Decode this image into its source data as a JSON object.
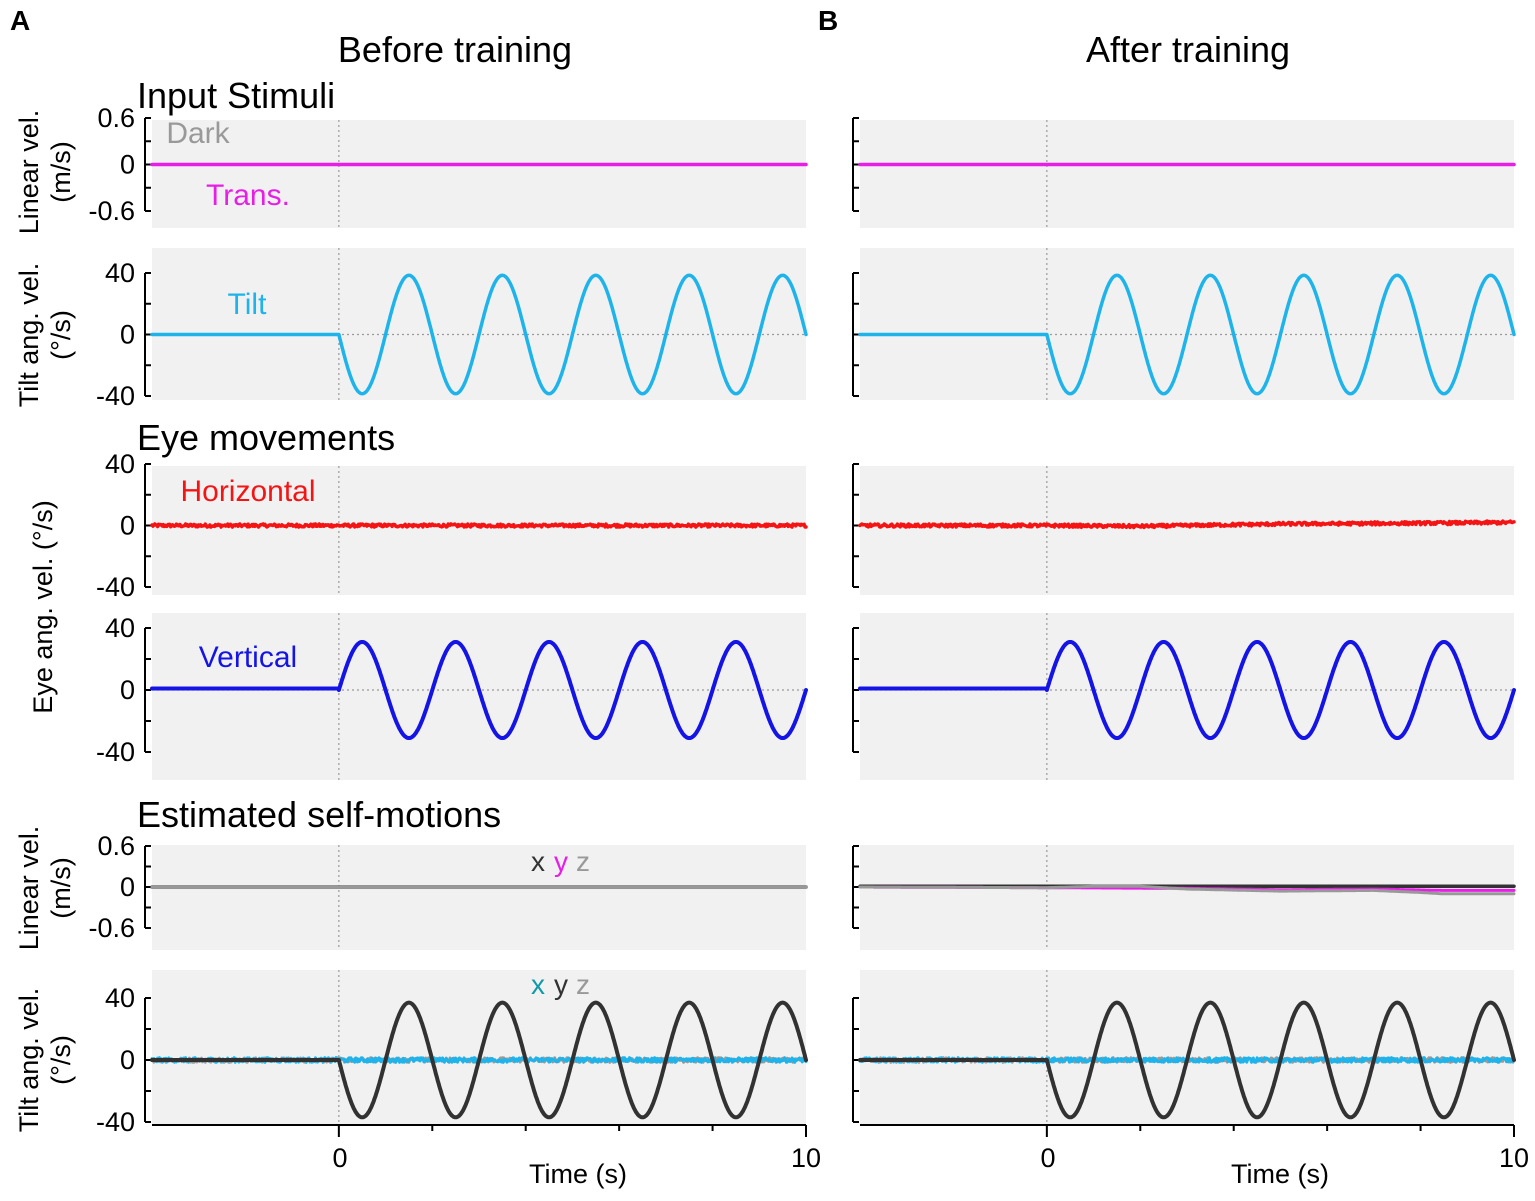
{
  "figure": {
    "panel_letters": [
      "A",
      "B"
    ],
    "column_titles": [
      "Before training",
      "After training"
    ],
    "section_titles": {
      "input": "Input Stimuli",
      "eye": "Eye movements",
      "estimated": "Estimated self-motions"
    },
    "x_axis": {
      "label": "Time (s)",
      "tick_labels": [
        "0",
        "10"
      ],
      "xlim": [
        -4,
        10
      ]
    },
    "y_axis_labels": {
      "linear_vel_line1": "Linear vel.",
      "linear_vel_line2": "(m/s)",
      "tilt_vel_line1": "Tilt ang. vel.",
      "tilt_vel_line2": "(°/s)",
      "eye_vel": "Eye ang. vel. (°/s)"
    },
    "in_plot_labels": {
      "dark": "Dark",
      "trans": "Trans.",
      "tilt": "Tilt",
      "horizontal": "Horizontal",
      "vertical": "Vertical",
      "xyz_linear": [
        "x",
        "y",
        "z"
      ],
      "xyz_tilt": [
        "x",
        "y",
        "z"
      ]
    },
    "colors": {
      "magenta": "#e61ee6",
      "light_blue": "#1eb4eb",
      "red": "#f51414",
      "blue": "#1414e6",
      "dark": "#323232",
      "gray": "#999999",
      "teal": "#0f9aa8",
      "panel_bg": "#f1f1f1"
    }
  },
  "chart_data": [
    {
      "type": "line",
      "panel": "A",
      "row": "Input stimuli - linear velocity",
      "ylabel": "Linear vel. (m/s)",
      "ylim": [
        -0.6,
        0.6
      ],
      "yticks": [
        -0.6,
        0,
        0.6
      ],
      "xlim": [
        -4,
        10
      ],
      "stimulus_onset": 0,
      "series": [
        {
          "name": "Trans.",
          "x": [
            -4,
            10
          ],
          "y": [
            0,
            0
          ]
        }
      ],
      "annotations": [
        "Dark",
        "Trans."
      ]
    },
    {
      "type": "line",
      "panel": "A",
      "row": "Input stimuli - tilt angular velocity",
      "ylabel": "Tilt ang. vel. (°/s)",
      "ylim": [
        -40,
        40
      ],
      "yticks": [
        -40,
        0,
        40
      ],
      "xlim": [
        -4,
        10
      ],
      "stimulus_onset": 0,
      "series": [
        {
          "name": "Tilt",
          "baseline_before_onset": 0,
          "amplitude": 38.5,
          "period": 2.0,
          "phase": "starts negative at onset",
          "x_range": [
            0,
            10
          ]
        }
      ]
    },
    {
      "type": "line",
      "panel": "A",
      "row": "Eye movements - horizontal",
      "ylabel": "Eye ang. vel. (°/s)",
      "ylim": [
        -40,
        40
      ],
      "yticks": [
        -40,
        0,
        40
      ],
      "xlim": [
        -4,
        10
      ],
      "stimulus_onset": 0,
      "series": [
        {
          "name": "Horizontal",
          "x": [
            -4,
            10
          ],
          "y": [
            0,
            0
          ],
          "noise": 1
        }
      ]
    },
    {
      "type": "line",
      "panel": "A",
      "row": "Eye movements - vertical",
      "ylabel": "Eye ang. vel. (°/s)",
      "ylim": [
        -40,
        40
      ],
      "yticks": [
        -40,
        0,
        40
      ],
      "xlim": [
        -4,
        10
      ],
      "stimulus_onset": 0,
      "series": [
        {
          "name": "Vertical",
          "baseline_before_onset": 1,
          "amplitude": 31,
          "period": 2.0,
          "phase": "starts positive at onset",
          "x_range": [
            0,
            10
          ]
        }
      ]
    },
    {
      "type": "line",
      "panel": "A",
      "row": "Estimated self-motions - linear velocity",
      "ylabel": "Linear vel. (m/s)",
      "ylim": [
        -0.6,
        0.6
      ],
      "yticks": [
        -0.6,
        0,
        0.6
      ],
      "xlim": [
        -4,
        10
      ],
      "stimulus_onset": 0,
      "series": [
        {
          "name": "x",
          "x": [
            -4,
            10
          ],
          "y": [
            0,
            0
          ]
        },
        {
          "name": "y",
          "x": [
            -4,
            10
          ],
          "y": [
            0,
            0
          ]
        },
        {
          "name": "z",
          "x": [
            -4,
            10
          ],
          "y": [
            0,
            0
          ]
        }
      ]
    },
    {
      "type": "line",
      "panel": "A",
      "row": "Estimated self-motions - tilt angular velocity",
      "ylabel": "Tilt ang. vel. (°/s)",
      "ylim": [
        -40,
        40
      ],
      "yticks": [
        -40,
        0,
        40
      ],
      "xlim": [
        -4,
        10
      ],
      "stimulus_onset": 0,
      "series": [
        {
          "name": "x",
          "baseline_before_onset": 0,
          "amplitude": 37,
          "period": 2.0,
          "phase": "starts negative at onset",
          "x_range": [
            0,
            10
          ]
        },
        {
          "name": "y",
          "x": [
            -4,
            10
          ],
          "y": [
            0,
            0
          ],
          "noise": 1.5
        },
        {
          "name": "z",
          "x": [
            -4,
            10
          ],
          "y": [
            0,
            0
          ],
          "noise": 1.5
        }
      ]
    },
    {
      "type": "line",
      "panel": "B",
      "row": "Input stimuli - linear velocity",
      "ylim": [
        -0.6,
        0.6
      ],
      "xlim": [
        -4,
        10
      ],
      "stimulus_onset": 0,
      "series": [
        {
          "name": "Trans.",
          "x": [
            -4,
            10
          ],
          "y": [
            0,
            0
          ]
        }
      ]
    },
    {
      "type": "line",
      "panel": "B",
      "row": "Input stimuli - tilt angular velocity",
      "ylim": [
        -40,
        40
      ],
      "xlim": [
        -4,
        10
      ],
      "stimulus_onset": 0,
      "series": [
        {
          "name": "Tilt",
          "baseline_before_onset": 0,
          "amplitude": 38.5,
          "period": 2.0,
          "phase": "starts negative at onset",
          "x_range": [
            0,
            10
          ]
        }
      ]
    },
    {
      "type": "line",
      "panel": "B",
      "row": "Eye movements - horizontal",
      "ylim": [
        -40,
        40
      ],
      "xlim": [
        -4,
        10
      ],
      "stimulus_onset": 0,
      "series": [
        {
          "name": "Horizontal",
          "x": [
            -4,
            0,
            2,
            5,
            8,
            10
          ],
          "y": [
            0,
            0,
            -0.5,
            1,
            1.5,
            2
          ],
          "noise": 1
        }
      ]
    },
    {
      "type": "line",
      "panel": "B",
      "row": "Eye movements - vertical",
      "ylim": [
        -40,
        40
      ],
      "xlim": [
        -4,
        10
      ],
      "stimulus_onset": 0,
      "series": [
        {
          "name": "Vertical",
          "baseline_before_onset": 1,
          "amplitude": 31,
          "period": 2.0,
          "phase": "starts positive at onset",
          "x_range": [
            0,
            10
          ]
        }
      ]
    },
    {
      "type": "line",
      "panel": "B",
      "row": "Estimated self-motions - linear velocity",
      "ylim": [
        -0.6,
        0.6
      ],
      "xlim": [
        -4,
        10
      ],
      "stimulus_onset": 0,
      "series": [
        {
          "name": "x",
          "x": [
            -4,
            10
          ],
          "y": [
            0.01,
            0.01
          ]
        },
        {
          "name": "y",
          "x": [
            -4,
            0,
            1,
            2,
            3,
            5,
            7,
            8,
            8.5,
            10
          ],
          "y": [
            0,
            -0.01,
            0.01,
            0.01,
            -0.03,
            -0.06,
            -0.05,
            -0.08,
            -0.1,
            -0.1
          ]
        },
        {
          "name": "z",
          "x": [
            -4,
            0,
            3,
            5,
            7,
            8.5,
            10
          ],
          "y": [
            0,
            -0.01,
            -0.02,
            -0.04,
            -0.03,
            -0.05,
            -0.05
          ]
        }
      ]
    },
    {
      "type": "line",
      "panel": "B",
      "row": "Estimated self-motions - tilt angular velocity",
      "ylim": [
        -40,
        40
      ],
      "xlim": [
        -4,
        10
      ],
      "stimulus_onset": 0,
      "series": [
        {
          "name": "x",
          "baseline_before_onset": 0,
          "amplitude": 37,
          "period": 2.0,
          "phase": "starts negative at onset",
          "x_range": [
            0,
            10
          ]
        },
        {
          "name": "y",
          "x": [
            -4,
            10
          ],
          "y": [
            0,
            0
          ],
          "noise": 1.5
        },
        {
          "name": "z",
          "x": [
            -4,
            10
          ],
          "y": [
            0,
            0
          ],
          "noise": 1.5
        }
      ]
    }
  ]
}
